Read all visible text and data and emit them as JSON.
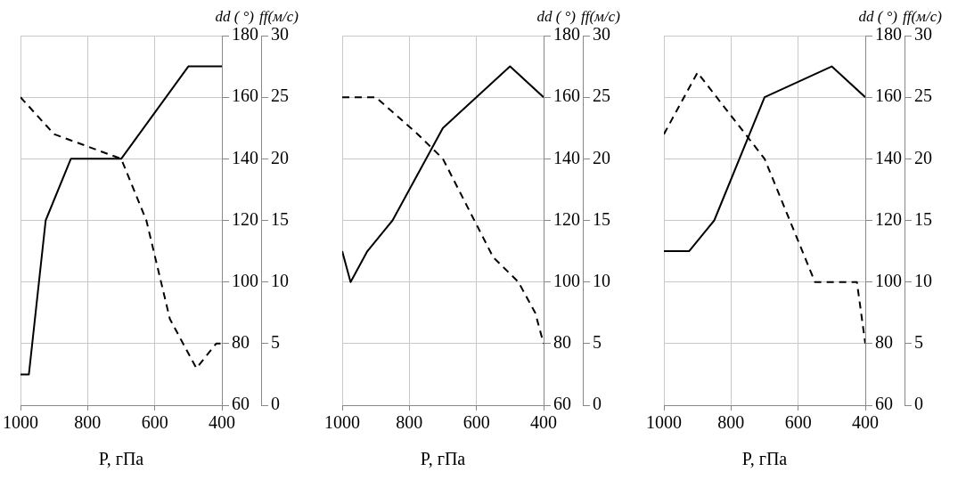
{
  "chart_data": [
    {
      "type": "line",
      "xlabel": "P, гПа",
      "ylabel": "dd ( °)",
      "y2label": "ff(м/с)",
      "xlim": [
        1000,
        400
      ],
      "xticks": [
        1000,
        800,
        600,
        400
      ],
      "ylim": [
        60,
        180
      ],
      "yticks": [
        60,
        80,
        100,
        120,
        140,
        160,
        180
      ],
      "y2lim": [
        0,
        30
      ],
      "y2ticks": [
        0,
        5,
        10,
        15,
        20,
        25,
        30
      ],
      "grid": true,
      "marker": "none",
      "series": [
        {
          "x": [
            1000,
            975,
            925,
            850,
            700,
            500,
            400
          ],
          "values": [
            70,
            70,
            120,
            140,
            140,
            170,
            170
          ],
          "color": "#000000",
          "line_style": "solid"
        },
        {
          "x": [
            1000,
            900,
            700,
            625,
            555,
            476,
            417,
            400
          ],
          "values": [
            25,
            22,
            20,
            15,
            7,
            3,
            5,
            5
          ],
          "color": "#000000",
          "line_style": "dashed",
          "axis": "y2"
        }
      ]
    },
    {
      "type": "line",
      "xlabel": "P, гПа",
      "ylabel": "dd ( °)",
      "y2label": "ff(м/с)",
      "xlim": [
        1000,
        400
      ],
      "xticks": [
        1000,
        800,
        600,
        400
      ],
      "ylim": [
        60,
        180
      ],
      "yticks": [
        60,
        80,
        100,
        120,
        140,
        160,
        180
      ],
      "y2lim": [
        0,
        30
      ],
      "y2ticks": [
        0,
        5,
        10,
        15,
        20,
        25,
        30
      ],
      "grid": true,
      "marker": "none",
      "series": [
        {
          "x": [
            1000,
            975,
            925,
            850,
            700,
            500,
            400
          ],
          "values": [
            110,
            100,
            110,
            120,
            150,
            170,
            160
          ],
          "color": "#000000",
          "line_style": "solid"
        },
        {
          "x": [
            1000,
            900,
            775,
            700,
            550,
            475,
            425,
            400
          ],
          "values": [
            25,
            25,
            22,
            20,
            12,
            10,
            7.5,
            5
          ],
          "color": "#000000",
          "line_style": "dashed",
          "axis": "y2"
        }
      ]
    },
    {
      "type": "line",
      "xlabel": "P, гПа",
      "ylabel": "dd ( °)",
      "y2label": "ff(м/с)",
      "xlim": [
        1000,
        400
      ],
      "xticks": [
        1000,
        800,
        600,
        400
      ],
      "ylim": [
        60,
        180
      ],
      "yticks": [
        60,
        80,
        100,
        120,
        140,
        160,
        180
      ],
      "y2lim": [
        0,
        30
      ],
      "y2ticks": [
        0,
        5,
        10,
        15,
        20,
        25,
        30
      ],
      "grid": true,
      "marker": "none",
      "series": [
        {
          "x": [
            1000,
            925,
            850,
            700,
            500,
            400
          ],
          "values": [
            110,
            110,
            120,
            160,
            170,
            160
          ],
          "color": "#000000",
          "line_style": "solid"
        },
        {
          "x": [
            1000,
            900,
            700,
            550,
            425,
            400
          ],
          "values": [
            22,
            27,
            20,
            10,
            10,
            5
          ],
          "color": "#000000",
          "line_style": "dashed",
          "axis": "y2"
        }
      ]
    }
  ]
}
